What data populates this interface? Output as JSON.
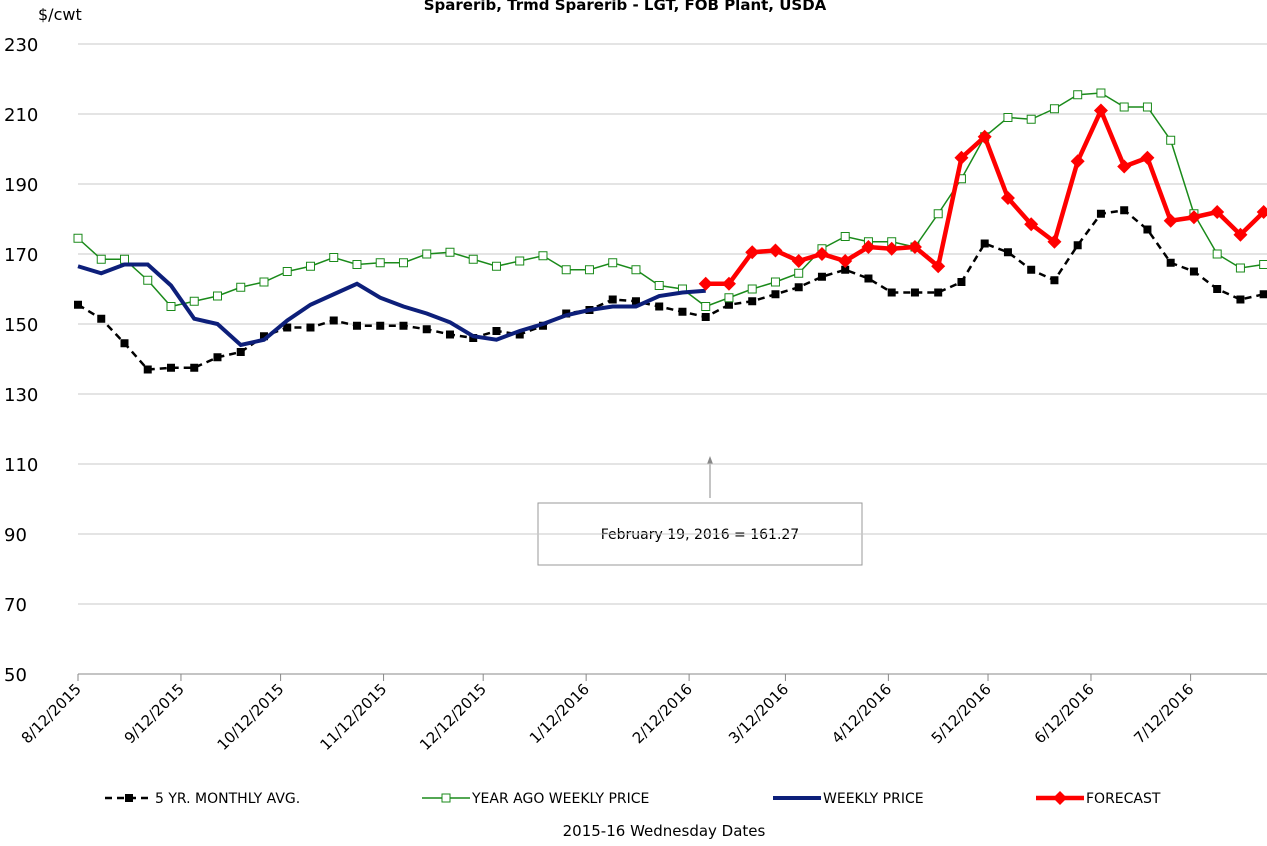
{
  "chart_data": {
    "type": "line",
    "title": "Sparerib, Trmd Sparerib - LGT, FOB Plant, USDA",
    "y_label": "$/cwt",
    "x_label": "2015-16 Wednesday Dates",
    "annotation": "February 19, 2016  = 161.27",
    "x": [
      "2015-08-12",
      "2015-08-19",
      "2015-08-26",
      "2015-09-02",
      "2015-09-09",
      "2015-09-16",
      "2015-09-23",
      "2015-09-30",
      "2015-10-07",
      "2015-10-14",
      "2015-10-21",
      "2015-10-28",
      "2015-11-04",
      "2015-11-11",
      "2015-11-18",
      "2015-11-25",
      "2015-12-02",
      "2015-12-09",
      "2015-12-16",
      "2015-12-23",
      "2015-12-30",
      "2016-01-06",
      "2016-01-13",
      "2016-01-20",
      "2016-01-27",
      "2016-02-03",
      "2016-02-10",
      "2016-02-17",
      "2016-02-24",
      "2016-03-02",
      "2016-03-09",
      "2016-03-16",
      "2016-03-23",
      "2016-03-30",
      "2016-04-06",
      "2016-04-13",
      "2016-04-20",
      "2016-04-27",
      "2016-05-04",
      "2016-05-11",
      "2016-05-18",
      "2016-05-25",
      "2016-06-01",
      "2016-06-08",
      "2016-06-15",
      "2016-06-22",
      "2016-06-29",
      "2016-07-06",
      "2016-07-13",
      "2016-07-20",
      "2016-07-27",
      "2016-08-03"
    ],
    "xlim": [
      "2015-08-12",
      "2016-08-04"
    ],
    "xticks": [
      {
        "value": "2015-08-12",
        "label": "8/12/2015"
      },
      {
        "value": "2015-09-12",
        "label": "9/12/2015"
      },
      {
        "value": "2015-10-12",
        "label": "10/12/2015"
      },
      {
        "value": "2015-11-12",
        "label": "11/12/2015"
      },
      {
        "value": "2015-12-12",
        "label": "12/12/2015"
      },
      {
        "value": "2016-01-12",
        "label": "1/12/2016"
      },
      {
        "value": "2016-02-12",
        "label": "2/12/2016"
      },
      {
        "value": "2016-03-12",
        "label": "3/12/2016"
      },
      {
        "value": "2016-04-12",
        "label": "4/12/2016"
      },
      {
        "value": "2016-05-12",
        "label": "5/12/2016"
      },
      {
        "value": "2016-06-12",
        "label": "6/12/2016"
      },
      {
        "value": "2016-07-12",
        "label": "7/12/2016"
      }
    ],
    "ylim": [
      50,
      230
    ],
    "yticks": [
      50,
      70,
      90,
      110,
      130,
      150,
      170,
      190,
      210,
      230
    ],
    "grid": true,
    "legend": "bottom",
    "series": [
      {
        "name": "5 YR. MONTHLY AVG.",
        "color": "#000000",
        "dashed": true,
        "marker": "square",
        "values": [
          155.5,
          151.5,
          144.5,
          137,
          137.5,
          137.5,
          140.5,
          142,
          146.5,
          149,
          149,
          151,
          149.5,
          149.5,
          149.5,
          148.5,
          147,
          146,
          148,
          147,
          149.5,
          153,
          154,
          157,
          156.5,
          155,
          153.5,
          152,
          155.5,
          156.5,
          158.5,
          160.5,
          163.5,
          165.5,
          163,
          159,
          159,
          159,
          162,
          173,
          170.5,
          165.5,
          162.5,
          172.5,
          181.5,
          182.5,
          177,
          167.5,
          165,
          160,
          157,
          158.5
        ]
      },
      {
        "name": "YEAR AGO WEEKLY PRICE",
        "color": "#1a8a1a",
        "dashed": false,
        "marker": "open-square",
        "values": [
          174.5,
          168.5,
          168.5,
          162.5,
          155,
          156.5,
          158,
          160.5,
          162,
          165,
          166.5,
          169,
          167,
          167.5,
          167.5,
          170,
          170.5,
          168.5,
          166.5,
          168,
          169.5,
          165.5,
          165.5,
          167.5,
          165.5,
          161,
          160,
          155,
          157.5,
          160,
          162,
          164.5,
          171.5,
          175,
          173.5,
          173.5,
          172,
          181.5,
          191.5,
          203.5,
          209,
          208.5,
          211.5,
          215.5,
          216,
          212,
          212,
          202.5,
          181.5,
          170,
          166,
          167
        ]
      },
      {
        "name": "WEEKLY PRICE",
        "color": "#0d1f7a",
        "dashed": false,
        "marker": "none",
        "values": [
          166.5,
          164.5,
          167,
          167,
          161,
          151.5,
          150,
          144,
          145.5,
          151,
          155.5,
          158.5,
          161.5,
          157.5,
          155,
          153,
          150.5,
          146.5,
          145.5,
          148,
          150,
          152.5,
          154,
          155,
          155,
          158,
          159,
          159.5,
          null,
          null,
          null,
          null,
          null,
          null,
          null,
          null,
          null,
          null,
          null,
          null,
          null,
          null,
          null,
          null,
          null,
          null,
          null,
          null,
          null,
          null,
          null,
          null
        ]
      },
      {
        "name": "FORECAST",
        "color": "#ff0000",
        "dashed": false,
        "marker": "diamond",
        "values": [
          null,
          null,
          null,
          null,
          null,
          null,
          null,
          null,
          null,
          null,
          null,
          null,
          null,
          null,
          null,
          null,
          null,
          null,
          null,
          null,
          null,
          null,
          null,
          null,
          null,
          null,
          null,
          161.5,
          161.5,
          170.5,
          171,
          168,
          170,
          168,
          172,
          171.5,
          172,
          166.5,
          197.5,
          203.5,
          186,
          178.5,
          173.5,
          196.5,
          211,
          195,
          197.5,
          179.5,
          180.5,
          182,
          175.5,
          182
        ]
      }
    ]
  }
}
